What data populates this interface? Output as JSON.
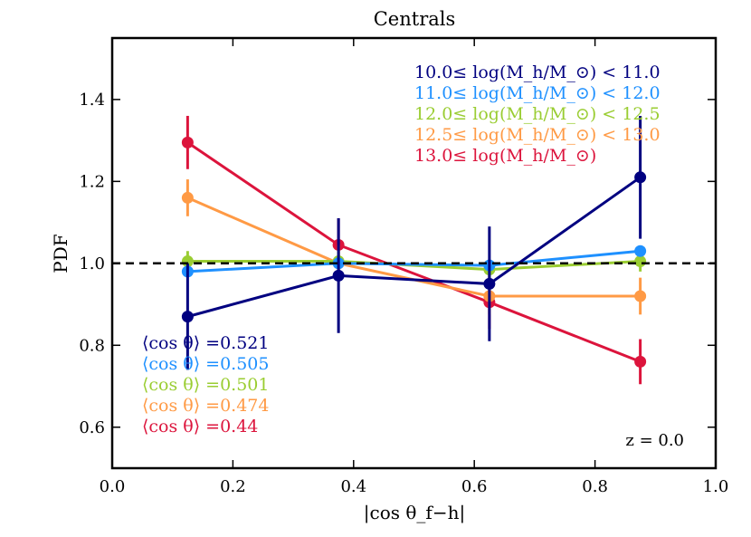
{
  "chart_data": {
    "type": "line",
    "title": "Centrals",
    "xlabel": "|cos θ_f−h|",
    "ylabel": "PDF",
    "xlim": [
      0.0,
      1.0
    ],
    "ylim": [
      0.5,
      1.55
    ],
    "x_ticks": [
      "0.0",
      "0.2",
      "0.4",
      "0.6",
      "0.8",
      "1.0"
    ],
    "y_ticks": [
      "0.6",
      "0.8",
      "1.0",
      "1.2",
      "1.4"
    ],
    "reference_line": {
      "y": 1.0,
      "style": "dashed",
      "color": "#000000"
    },
    "annotation": "z = 0.0",
    "x": [
      0.125,
      0.375,
      0.625,
      0.875
    ],
    "series": [
      {
        "name": "10.0≤ log(M_h/M_⊙) < 11.0",
        "color": "#000080",
        "values": [
          0.87,
          0.97,
          0.95,
          1.21
        ],
        "err": [
          0.13,
          0.14,
          0.14,
          0.15
        ],
        "mean_label": "⟨cos θ⟩ =0.521"
      },
      {
        "name": "11.0≤ log(M_h/M_⊙) < 12.0",
        "color": "#1e90ff",
        "values": [
          0.98,
          1.0,
          0.995,
          1.03
        ],
        "err": [
          0.012,
          0.012,
          0.012,
          0.012
        ],
        "mean_label": "⟨cos θ⟩ =0.505"
      },
      {
        "name": "12.0≤ log(M_h/M_⊙) < 12.5",
        "color": "#9acd32",
        "values": [
          1.005,
          1.005,
          0.985,
          1.005
        ],
        "err": [
          0.025,
          0.025,
          0.025,
          0.025
        ],
        "mean_label": "⟨cos θ⟩ =0.501"
      },
      {
        "name": "12.5≤ log(M_h/M_⊙) < 13.0",
        "color": "#ff9a45",
        "values": [
          1.16,
          1.0,
          0.92,
          0.92
        ],
        "err": [
          0.045,
          0.045,
          0.045,
          0.045
        ],
        "mean_label": "⟨cos θ⟩ =0.474"
      },
      {
        "name": "13.0≤ log(M_h/M_⊙)",
        "color": "#dc143c",
        "values": [
          1.295,
          1.045,
          0.905,
          0.76
        ],
        "err": [
          0.065,
          0.065,
          0.065,
          0.055
        ],
        "mean_label": "⟨cos θ⟩ =0.44"
      }
    ]
  }
}
